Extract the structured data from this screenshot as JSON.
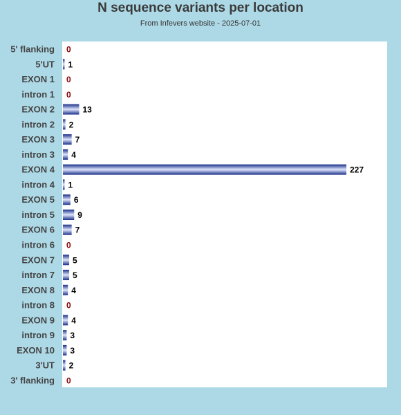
{
  "title": "N sequence variants per location",
  "subtitle": "From Infevers website - 2025-07-01",
  "chart_data": {
    "type": "bar",
    "orientation": "horizontal",
    "title": "N sequence variants per location",
    "subtitle": "From Infevers website - 2025-07-01",
    "categories": [
      "5' flanking",
      "5'UT",
      "EXON 1",
      "intron 1",
      "EXON 2",
      "intron 2",
      "EXON 3",
      "intron 3",
      "EXON 4",
      "intron 4",
      "EXON 5",
      "intron 5",
      "EXON 6",
      "intron 6",
      "EXON 7",
      "intron 7",
      "EXON 8",
      "intron 8",
      "EXON 9",
      "intron 9",
      "EXON 10",
      "3'UT",
      "3' flanking"
    ],
    "values": [
      0,
      1,
      0,
      0,
      13,
      2,
      7,
      4,
      227,
      1,
      6,
      9,
      7,
      0,
      5,
      5,
      4,
      0,
      4,
      3,
      3,
      2,
      0
    ],
    "xlim": [
      0,
      227
    ],
    "grid": false,
    "legend": "none",
    "colors": {
      "page_background": "#add8e6",
      "plot_background": "#ffffff",
      "bar_dark": "#1a2f8a",
      "bar_light": "#dfe6fb",
      "value_label": "#000000",
      "zero_label": "#8b0000",
      "category_label": "#444444"
    }
  }
}
